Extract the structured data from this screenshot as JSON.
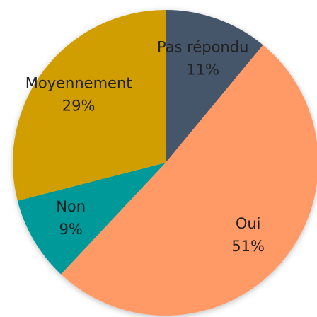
{
  "chart_data": {
    "type": "pie",
    "categories": [
      "Pas répondu",
      "Oui",
      "Non",
      "Moyennement"
    ],
    "values": [
      11,
      51,
      9,
      29
    ],
    "value_labels": [
      "11%",
      "51%",
      "9%",
      "29%"
    ],
    "colors": [
      "#44546a",
      "#ff9966",
      "#00999a",
      "#d09e00"
    ]
  }
}
